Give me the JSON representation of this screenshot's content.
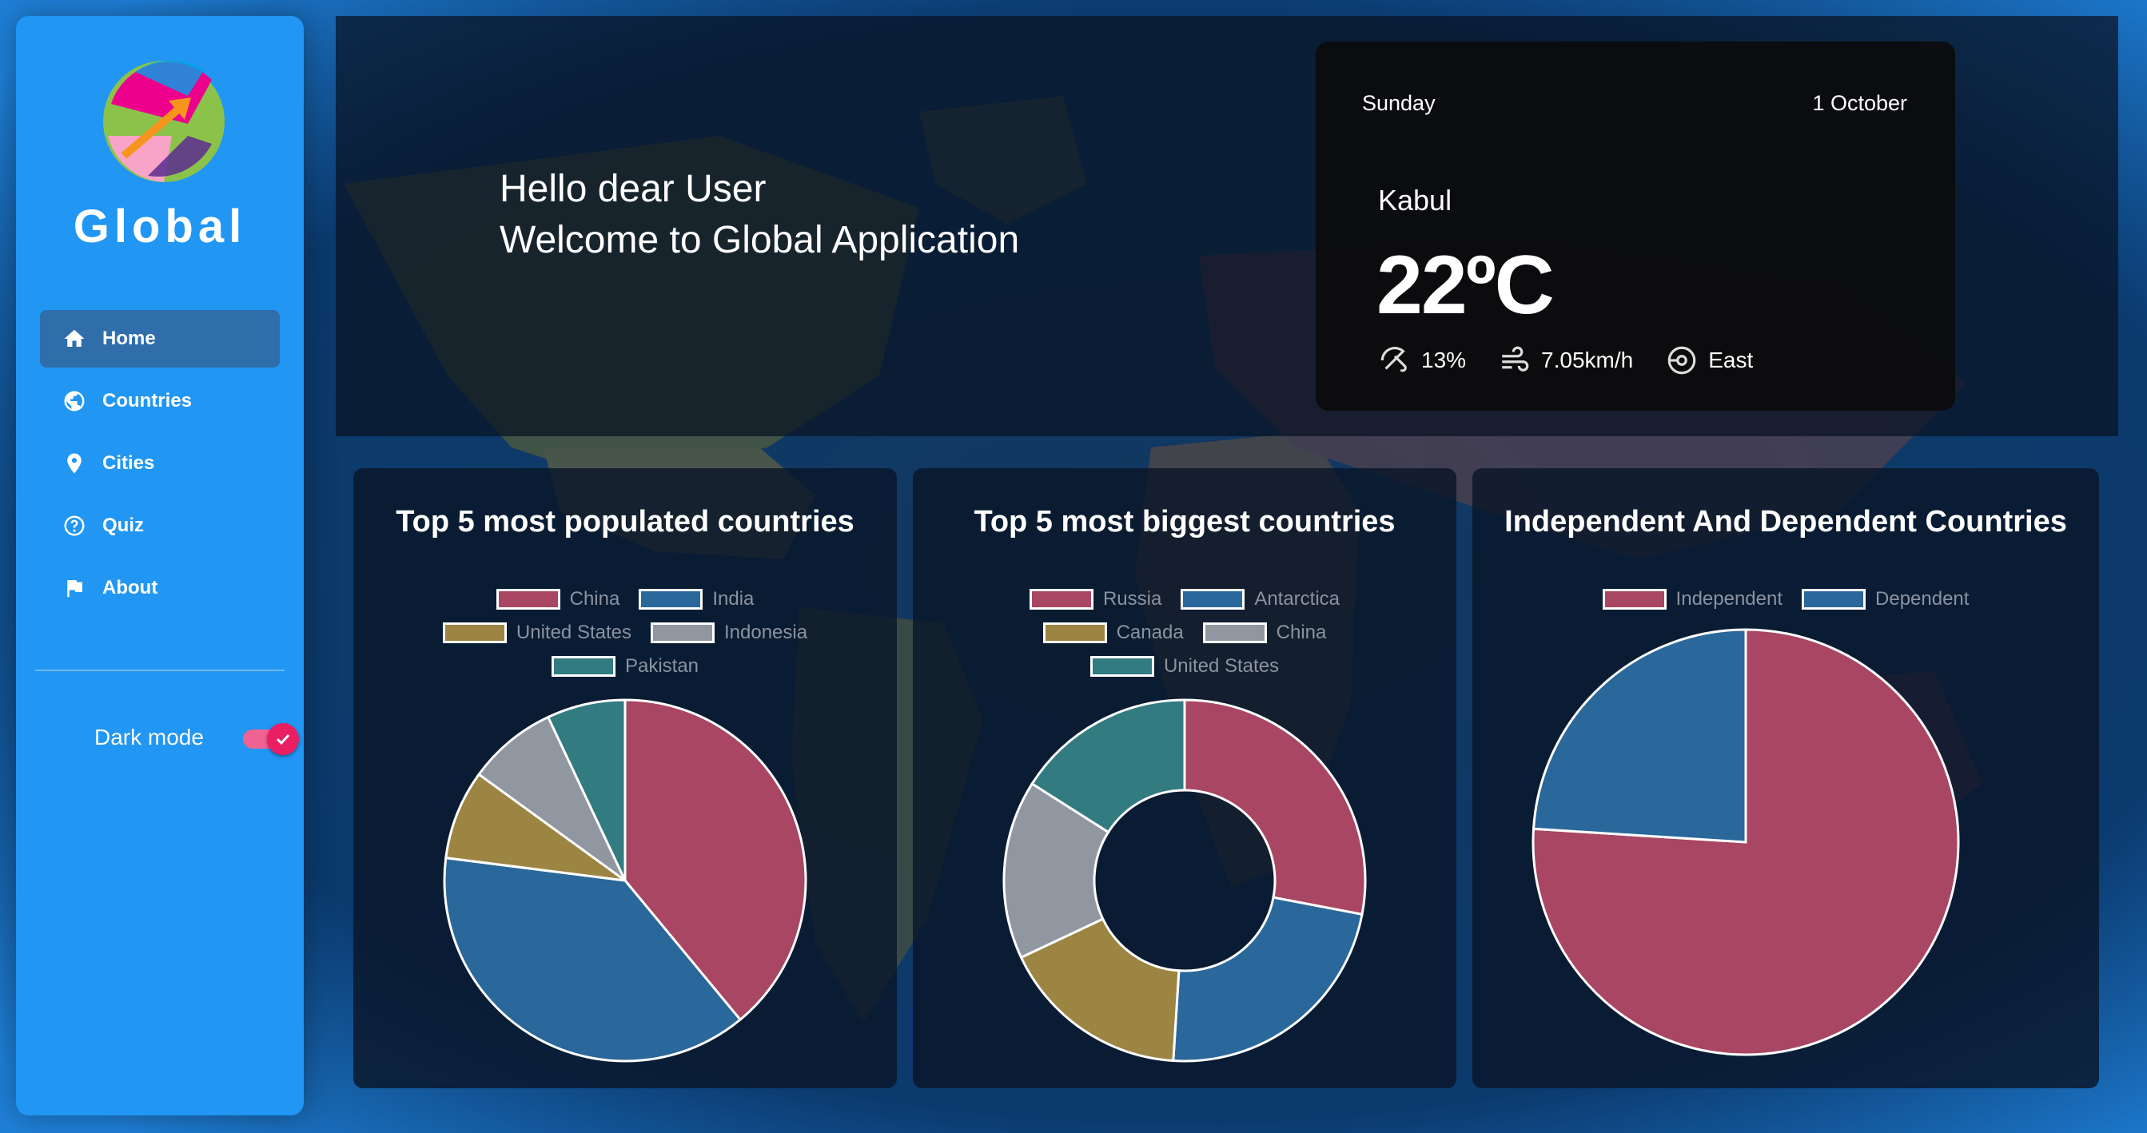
{
  "sidebar": {
    "brand": "Global",
    "nav": [
      {
        "label": "Home",
        "icon": "home-icon",
        "active": true
      },
      {
        "label": "Countries",
        "icon": "globe-icon",
        "active": false
      },
      {
        "label": "Cities",
        "icon": "location-pin-icon",
        "active": false
      },
      {
        "label": "Quiz",
        "icon": "question-circle-icon",
        "active": false
      },
      {
        "label": "About",
        "icon": "flag-icon",
        "active": false
      }
    ],
    "dark_mode_label": "Dark mode",
    "dark_mode_on": true
  },
  "banner": {
    "greeting_line1": "Hello dear User",
    "greeting_line2": "Welcome to Global Application"
  },
  "weather": {
    "day": "Sunday",
    "date": "1 October",
    "city": "Kabul",
    "temperature": "22ºC",
    "humidity": "13%",
    "wind_speed": "7.05km/h",
    "wind_direction": "East"
  },
  "colors": {
    "sidebar": "#2196f3",
    "slice_red": "#a84663",
    "slice_blue": "#2a679a",
    "slice_gold": "#9c8542",
    "slice_gray": "#9097a1",
    "slice_teal": "#327b80",
    "toggle": "#e91e63"
  },
  "chart_data": [
    {
      "type": "pie",
      "title": "Top 5 most populated countries",
      "legend_position": "top",
      "categories": [
        "China",
        "India",
        "United States",
        "Indonesia",
        "Pakistan"
      ],
      "values": [
        39,
        38,
        8,
        8,
        7
      ]
    },
    {
      "type": "pie",
      "variant": "doughnut",
      "title": "Top 5 most biggest countries",
      "legend_position": "top",
      "categories": [
        "Russia",
        "Antarctica",
        "Canada",
        "China",
        "United States"
      ],
      "values": [
        28,
        23,
        17,
        16,
        16
      ]
    },
    {
      "type": "pie",
      "title": "Independent And Dependent Countries",
      "legend_position": "top",
      "categories": [
        "Independent",
        "Dependent"
      ],
      "values": [
        76,
        24
      ]
    }
  ]
}
